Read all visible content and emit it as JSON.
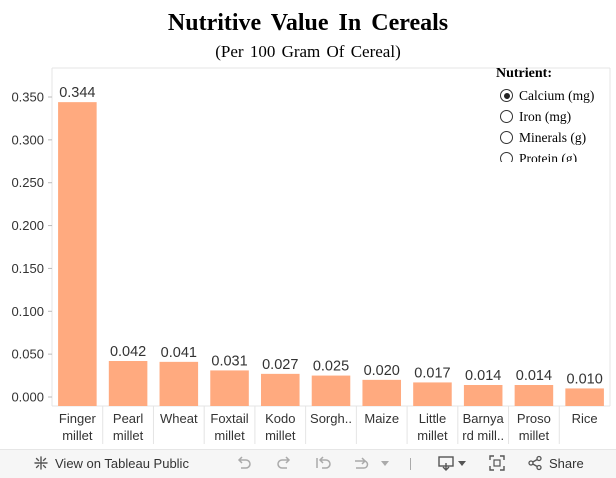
{
  "chart_data": {
    "type": "bar",
    "title": "Nutritive Value In Cereals",
    "subtitle": "(Per 100 Gram Of Cereal)",
    "xlabel": "",
    "ylabel": "",
    "ylim": [
      0,
      0.35
    ],
    "yticks": [
      "0.000",
      "0.050",
      "0.100",
      "0.150",
      "0.200",
      "0.250",
      "0.300",
      "0.350"
    ],
    "categories": [
      [
        "Finger",
        "millet"
      ],
      [
        "Pearl",
        "millet"
      ],
      [
        "Wheat"
      ],
      [
        "Foxtail",
        "millet"
      ],
      [
        "Kodo",
        "millet"
      ],
      [
        "Sorgh.."
      ],
      [
        "Maize"
      ],
      [
        "Little",
        "millet"
      ],
      [
        "Barnya",
        "rd mill.."
      ],
      [
        "Proso",
        "millet"
      ],
      [
        "Rice"
      ]
    ],
    "values": [
      0.344,
      0.042,
      0.041,
      0.031,
      0.027,
      0.025,
      0.02,
      0.017,
      0.014,
      0.014,
      0.01
    ],
    "value_labels": [
      "0.344",
      "0.042",
      "0.041",
      "0.031",
      "0.027",
      "0.025",
      "0.020",
      "0.017",
      "0.014",
      "0.014",
      "0.010"
    ],
    "bar_color": "#ffaa7f",
    "legend": {
      "title": "Nutrient:",
      "items": [
        "Calcium (mg)",
        "Iron (mg)",
        "Minerals (g)",
        "Protein (g)"
      ],
      "selected": "Calcium (mg)",
      "position": "top-right"
    }
  },
  "toolbar": {
    "view_on_tableau": "View on Tableau Public",
    "share": "Share"
  }
}
